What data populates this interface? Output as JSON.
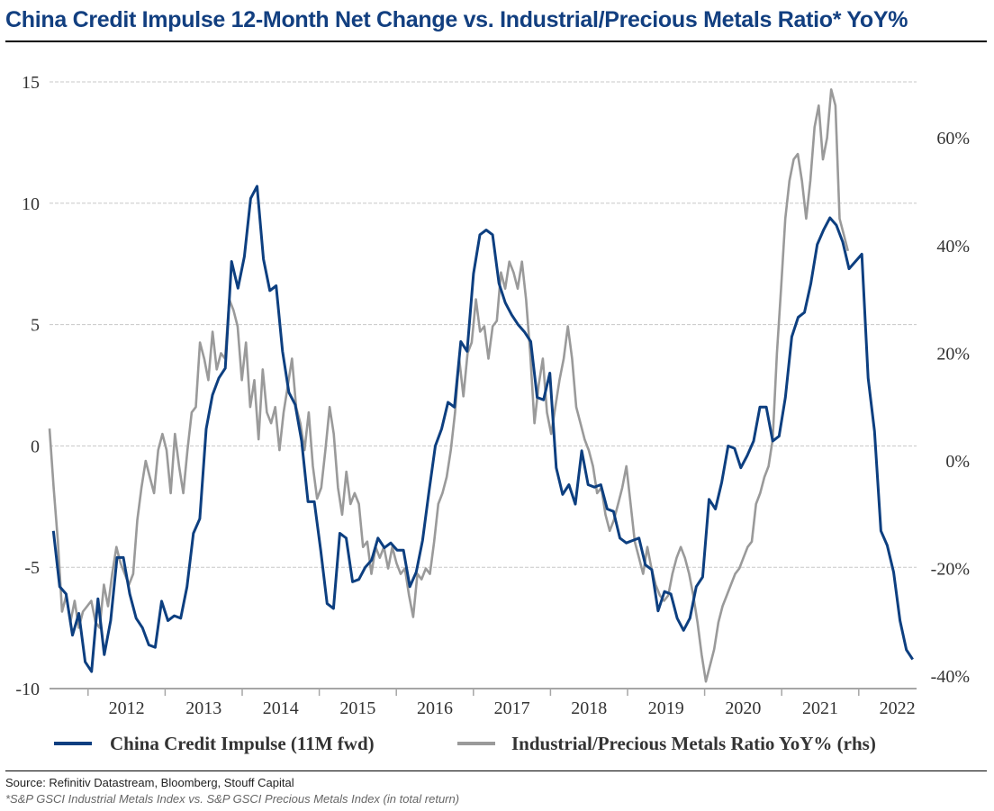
{
  "chart_data": {
    "type": "line",
    "title": "China Credit Impulse 12-Month Net Change vs. Industrial/Precious Metals Ratio* YoY%",
    "xlabel": "",
    "ylabel": "",
    "x_ticks": [
      "2012",
      "2013",
      "2014",
      "2015",
      "2016",
      "2017",
      "2018",
      "2019",
      "2020",
      "2021",
      "2022"
    ],
    "xlim": [
      2011.5,
      2022.75
    ],
    "y_left": {
      "ticks": [
        15,
        10,
        5,
        0,
        -5,
        -10
      ],
      "tick_labels": [
        "15",
        "10",
        "5",
        "0",
        "-5",
        "-10"
      ],
      "ylim": [
        -10,
        15
      ]
    },
    "y_right": {
      "ticks": [
        60,
        40,
        20,
        0,
        -20,
        -40
      ],
      "tick_labels": [
        "60%",
        "40%",
        "20%",
        "0%",
        "-20%",
        "-40%"
      ],
      "ylim": [
        -42.3,
        70.4
      ]
    },
    "grid": true,
    "legend_position": "bottom",
    "series": [
      {
        "name": "China Credit Impulse (11M fwd)",
        "axis": "left",
        "color": "#0d3f80",
        "x_start": 2011.55,
        "x_end": 2022.7,
        "values": [
          -3.5,
          -5.8,
          -6.1,
          -7.8,
          -6.9,
          -8.9,
          -9.3,
          -6.3,
          -8.6,
          -7.2,
          -4.6,
          -4.6,
          -6.1,
          -7.1,
          -7.5,
          -8.2,
          -8.3,
          -6.4,
          -7.2,
          -7.0,
          -7.1,
          -5.8,
          -3.6,
          -3.0,
          0.7,
          2.1,
          2.8,
          3.2,
          7.6,
          6.5,
          7.8,
          10.2,
          10.7,
          7.7,
          6.4,
          6.6,
          3.9,
          2.2,
          1.7,
          0.2,
          -2.3,
          -2.3,
          -4.3,
          -6.5,
          -6.7,
          -3.6,
          -3.8,
          -5.6,
          -5.5,
          -5.0,
          -4.7,
          -3.8,
          -4.2,
          -4.0,
          -4.3,
          -4.3,
          -5.8,
          -5.2,
          -3.9,
          -1.9,
          0,
          0.7,
          1.8,
          1.6,
          4.3,
          3.9,
          7.1,
          8.7,
          8.9,
          8.7,
          6.7,
          5.9,
          5.4,
          5.0,
          4.7,
          4.3,
          2.0,
          1.9,
          3.0,
          -0.9,
          -2.0,
          -1.6,
          -2.4,
          -0.2,
          -1.6,
          -1.7,
          -1.6,
          -2.6,
          -2.7,
          -3.8,
          -4.0,
          -3.9,
          -3.8,
          -4.9,
          -5.1,
          -6.8,
          -6.0,
          -6.1,
          -7.1,
          -7.6,
          -7.1,
          -5.8,
          -5.4,
          -2.2,
          -2.6,
          -1.5,
          0,
          -0.1,
          -0.9,
          -0.4,
          0.2,
          1.6,
          1.6,
          0.2,
          0.4,
          2.0,
          4.5,
          5.3,
          5.5,
          6.7,
          8.3,
          8.9,
          9.4,
          9.1,
          8.4,
          7.3,
          7.6,
          7.9,
          2.8,
          0.6,
          -3.5,
          -4.1,
          -5.2,
          -7.2,
          -8.4,
          -8.8
        ]
      },
      {
        "name": "Industrial/Precious Metals Ratio YoY% (rhs)",
        "axis": "right",
        "color": "#9a9a9a",
        "x_start": 2011.5,
        "x_end": 2021.86,
        "values": [
          6,
          -5,
          -15,
          -28,
          -25,
          -30,
          -26,
          -31,
          -28,
          -27,
          -26,
          -30,
          -31,
          -23,
          -27,
          -21,
          -16,
          -19,
          -21,
          -23,
          -21,
          -11,
          -5,
          0,
          -3,
          -6,
          2,
          5,
          2,
          -6,
          5,
          -1,
          -6,
          2,
          9,
          10,
          22,
          19,
          15,
          24,
          17,
          20,
          19,
          30,
          28,
          25,
          15,
          22,
          10,
          15,
          4,
          17,
          9,
          7,
          10,
          2,
          9,
          14,
          19,
          10,
          7,
          2,
          9,
          -1,
          -7,
          -5,
          2,
          10,
          5,
          -5,
          -10,
          -2,
          -8,
          -6,
          -8,
          -16,
          -15,
          -21,
          -16,
          -18,
          -16,
          -20,
          -16,
          -19,
          -21,
          -20,
          -25,
          -29,
          -21,
          -22,
          -20,
          -21,
          -15,
          -8,
          -6,
          -3,
          2,
          9,
          19,
          12,
          20,
          22,
          30,
          24,
          25,
          19,
          25,
          26,
          35,
          32,
          37,
          35,
          32,
          37,
          30,
          20,
          7,
          14,
          19,
          9,
          5,
          10,
          15,
          19,
          25,
          19,
          10,
          7,
          4,
          2,
          -1,
          -6,
          -5,
          -10,
          -13,
          -11,
          -8,
          -5,
          -1,
          -8,
          -15,
          -18,
          -21,
          -16,
          -20,
          -23,
          -25,
          -26,
          -25,
          -21,
          -18,
          -16,
          -18,
          -21,
          -25,
          -30,
          -36,
          -41,
          -38,
          -35,
          -30,
          -27,
          -25,
          -23,
          -21,
          -20,
          -18,
          -16,
          -15,
          -8,
          -6,
          -3,
          -1,
          4,
          20,
          32,
          45,
          52,
          56,
          57,
          52,
          45,
          52,
          62,
          66,
          56,
          60,
          69,
          66,
          45,
          42,
          39
        ]
      }
    ]
  },
  "footer": {
    "source": "Source: Refinitiv Datastream, Bloomberg, Stouff Capital",
    "note": "*S&P GSCI Industrial Metals Index vs. S&P GSCI Precious Metals Index (in total return)"
  }
}
